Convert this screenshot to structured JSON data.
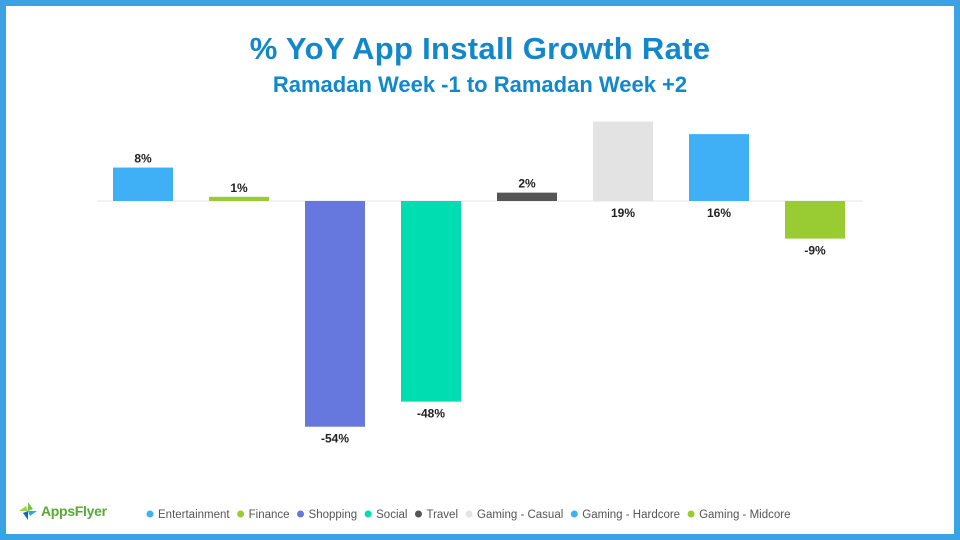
{
  "header": {
    "title": "% YoY App Install Growth Rate",
    "subtitle": "Ramadan Week -1 to Ramadan Week +2"
  },
  "brand": {
    "logo_text": "AppsFlyer",
    "logo_icon": "appsflyer-logo-icon"
  },
  "colors": {
    "frame": "#3aa3e3",
    "title": "#1187cc"
  },
  "chart_data": {
    "type": "bar",
    "title": "% YoY App Install Growth Rate",
    "subtitle": "Ramadan Week -1 to Ramadan Week +2",
    "categories": [
      "Entertainment",
      "Finance",
      "Shopping",
      "Social",
      "Travel",
      "Gaming - Casual",
      "Gaming - Hardcore",
      "Gaming - Midcore"
    ],
    "values": [
      8,
      1,
      -54,
      -48,
      2,
      19,
      16,
      -9
    ],
    "labels": [
      "8%",
      "1%",
      "-54%",
      "-48%",
      "2%",
      "19%",
      "16%",
      "-9%"
    ],
    "colors": [
      "#3fb0f5",
      "#99cc33",
      "#6677dd",
      "#00ddb0",
      "#555555",
      "#e3e3e3",
      "#3fb0f5",
      "#99cc33"
    ],
    "ylim": [
      -54,
      19
    ],
    "grid": false,
    "legend": "bottom",
    "xlabel": "",
    "ylabel": ""
  }
}
